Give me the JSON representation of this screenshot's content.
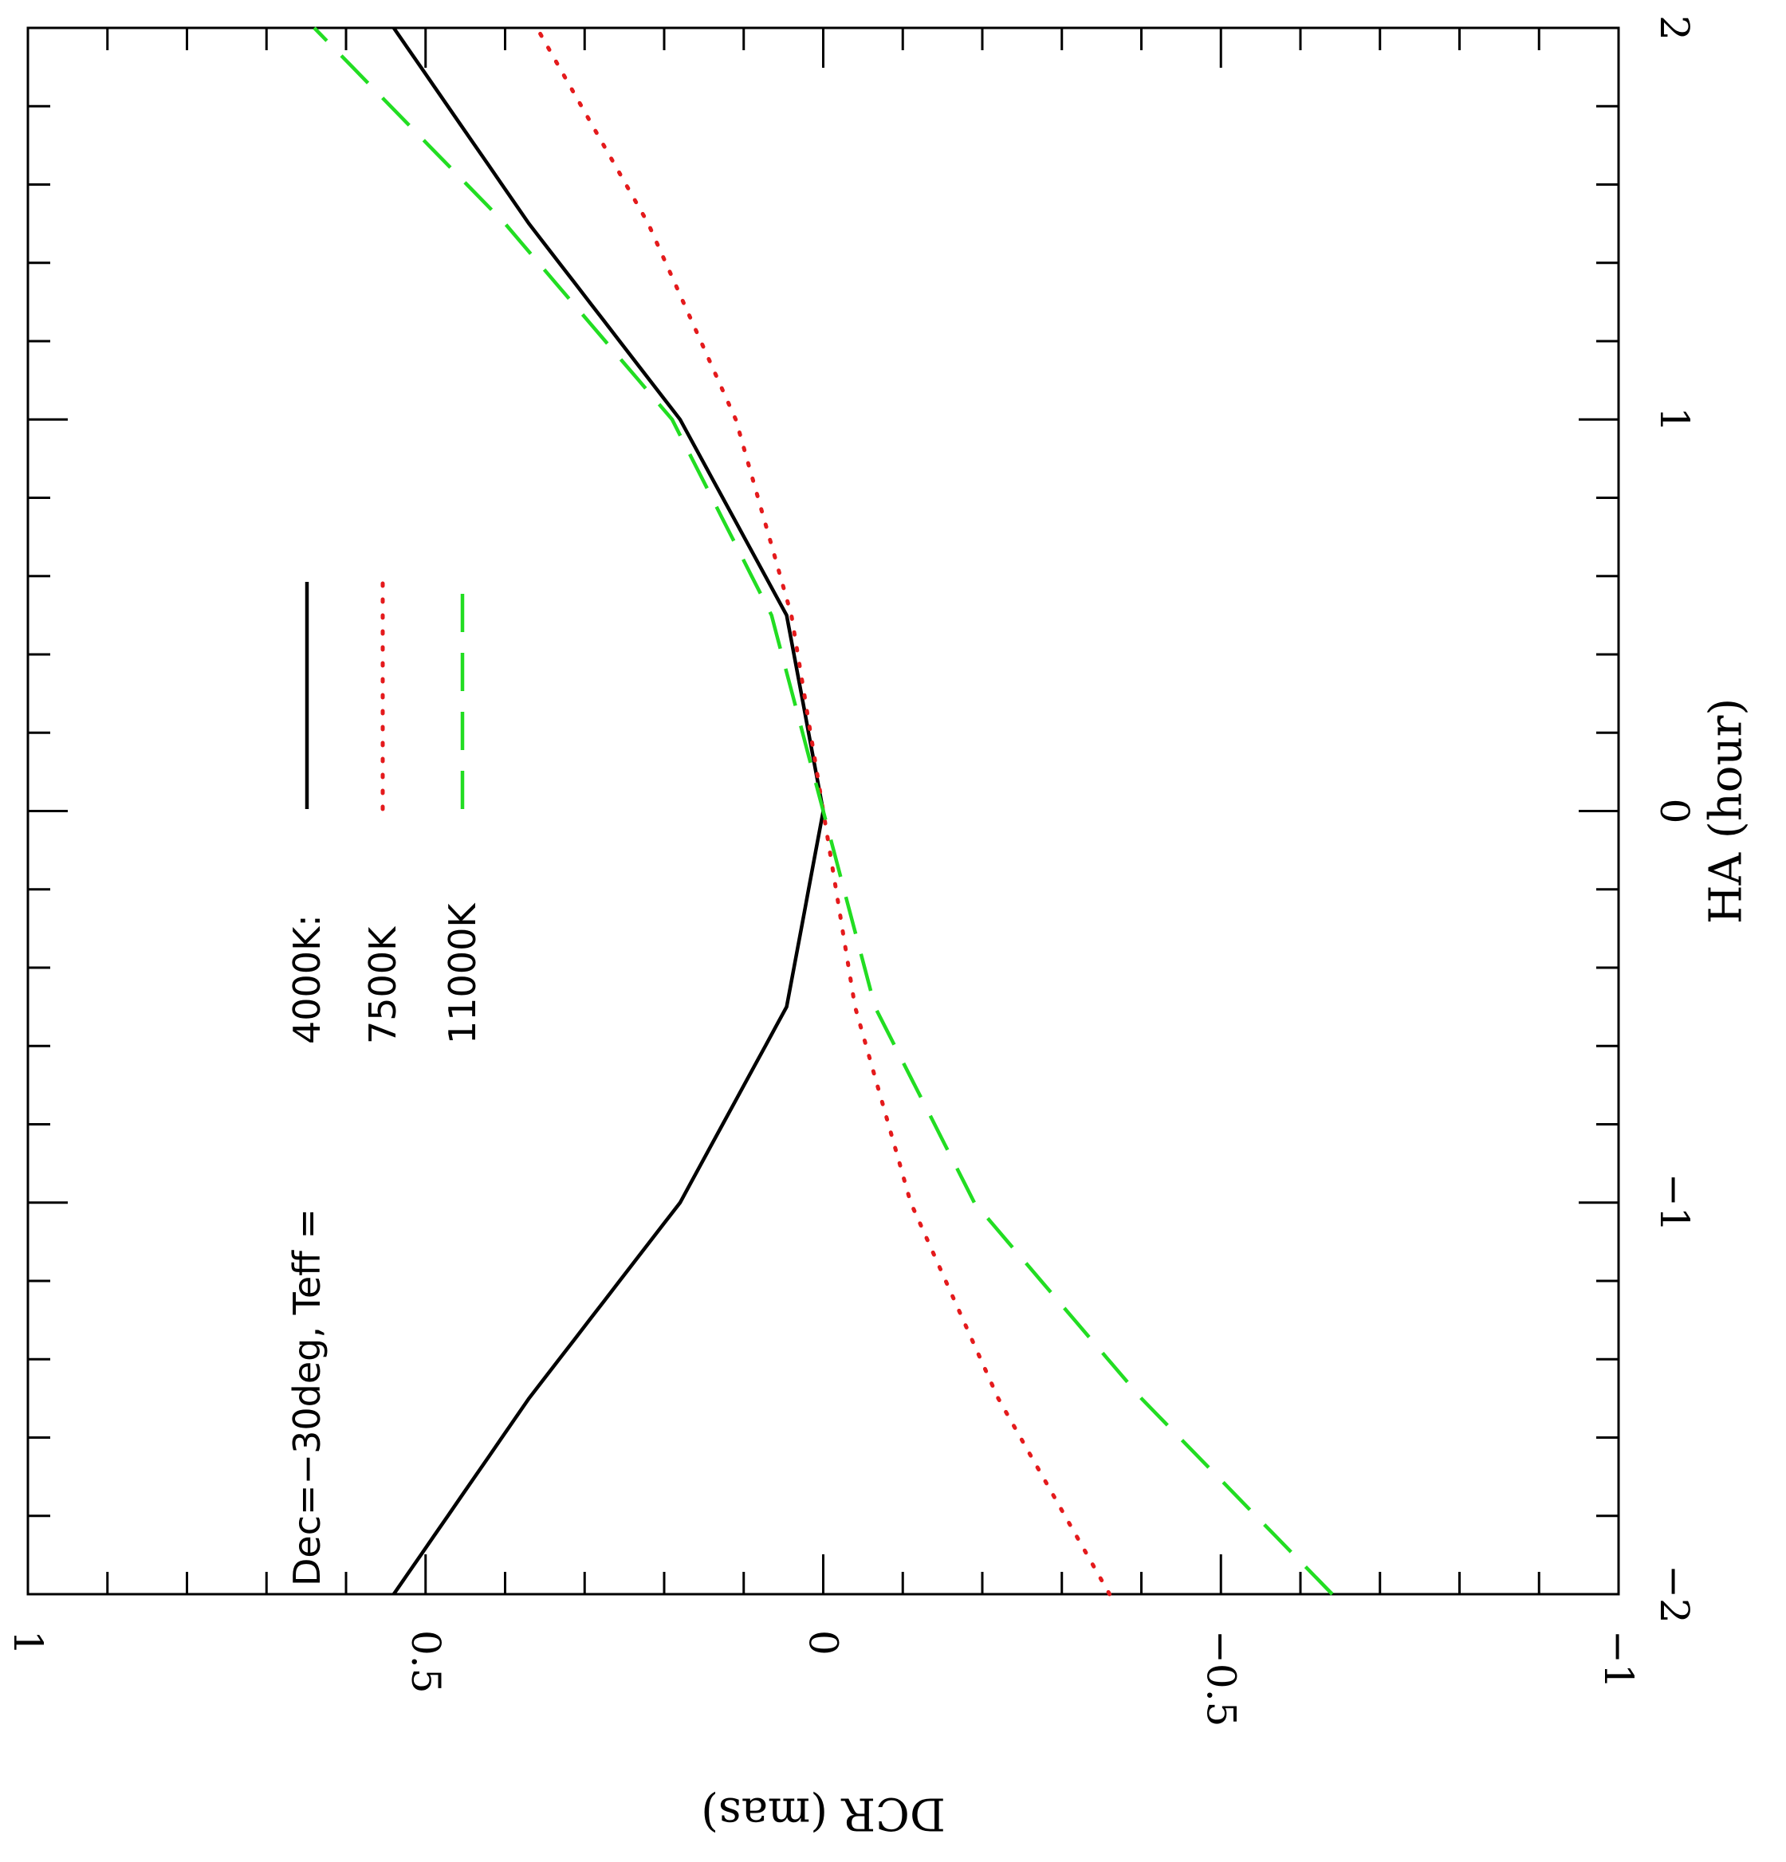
{
  "chart_data": {
    "type": "line",
    "orientation": "rotated-90",
    "title": "",
    "xlabel": "HA (hour)",
    "ylabel": "DCR (mas)",
    "xlim": [
      -2,
      2
    ],
    "ylim": [
      -1,
      1
    ],
    "xticks": [
      -2,
      -1,
      0,
      1,
      2
    ],
    "yticks": [
      1,
      0.5,
      0,
      -0.5,
      -1
    ],
    "x_tick_labels": [
      "−2",
      "−1",
      "0",
      "1",
      "2"
    ],
    "y_tick_labels": [
      "1",
      "0.5",
      "0",
      "−0.5",
      "−1"
    ],
    "legend": {
      "header": "Dec=−30deg, Teff =",
      "placement": "top-left",
      "entries": [
        {
          "label": "4000K:",
          "series_index": 0
        },
        {
          "label": "7500K",
          "series_index": 1
        },
        {
          "label": "11000K",
          "series_index": 2
        }
      ]
    },
    "x": [
      -2,
      -1.5,
      -1,
      -0.5,
      0,
      0.5,
      1,
      1.5,
      2
    ],
    "series": [
      {
        "name": "4000K",
        "color": "#000000",
        "style": "solid",
        "values": [
          0.54,
          0.37,
          0.18,
          0.046,
          0,
          0.046,
          0.18,
          0.37,
          0.54
        ]
      },
      {
        "name": "7500K",
        "color": "#e41a1c",
        "style": "dotted",
        "values": [
          -0.36,
          -0.22,
          -0.11,
          -0.04,
          0,
          0.04,
          0.11,
          0.22,
          0.36
        ]
      },
      {
        "name": "11000K",
        "color": "#22dd22",
        "style": "dashed",
        "values": [
          -0.64,
          -0.4,
          -0.19,
          -0.065,
          0,
          0.065,
          0.19,
          0.4,
          0.64
        ]
      }
    ],
    "grid": false
  }
}
